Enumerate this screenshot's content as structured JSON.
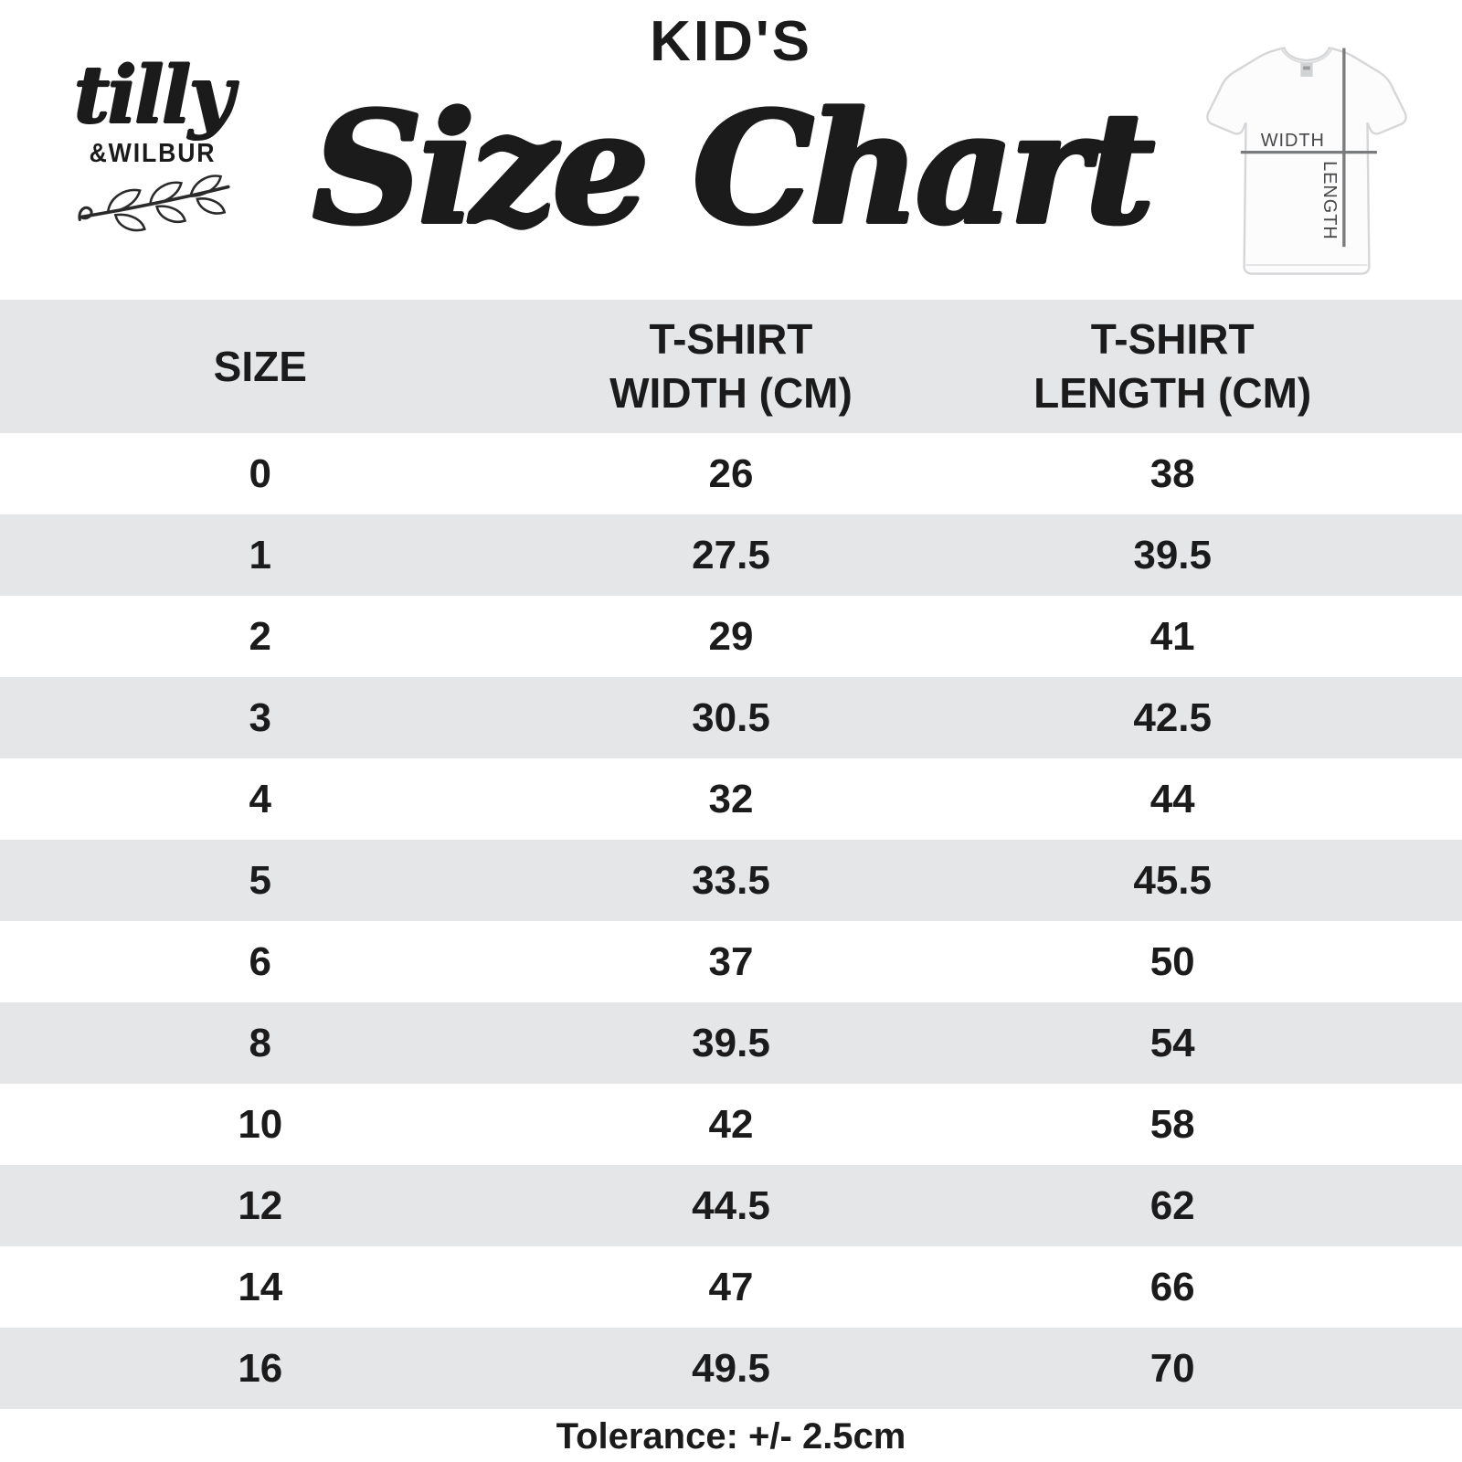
{
  "brand": {
    "script": "tilly",
    "caps": "&WILBUR"
  },
  "header": {
    "kicker": "KID'S",
    "title": "Size Chart"
  },
  "tshirt_diagram": {
    "width_label": "WIDTH",
    "length_label": "LENGTH"
  },
  "chart_data": {
    "type": "table",
    "title": "KID'S Size Chart",
    "columns": [
      "SIZE",
      "T-SHIRT WIDTH (CM)",
      "T-SHIRT LENGTH (CM)"
    ],
    "rows": [
      [
        "0",
        "26",
        "38"
      ],
      [
        "1",
        "27.5",
        "39.5"
      ],
      [
        "2",
        "29",
        "41"
      ],
      [
        "3",
        "30.5",
        "42.5"
      ],
      [
        "4",
        "32",
        "44"
      ],
      [
        "5",
        "33.5",
        "45.5"
      ],
      [
        "6",
        "37",
        "50"
      ],
      [
        "8",
        "39.5",
        "54"
      ],
      [
        "10",
        "42",
        "58"
      ],
      [
        "12",
        "44.5",
        "62"
      ],
      [
        "14",
        "47",
        "66"
      ],
      [
        "16",
        "49.5",
        "70"
      ]
    ],
    "footnote": "Tolerance: +/- 2.5cm"
  },
  "colors": {
    "row_alt": "#e5e6e8",
    "text": "#1b1b1b",
    "diagram_line": "#7a7b7d",
    "diagram_text": "#47484a"
  }
}
